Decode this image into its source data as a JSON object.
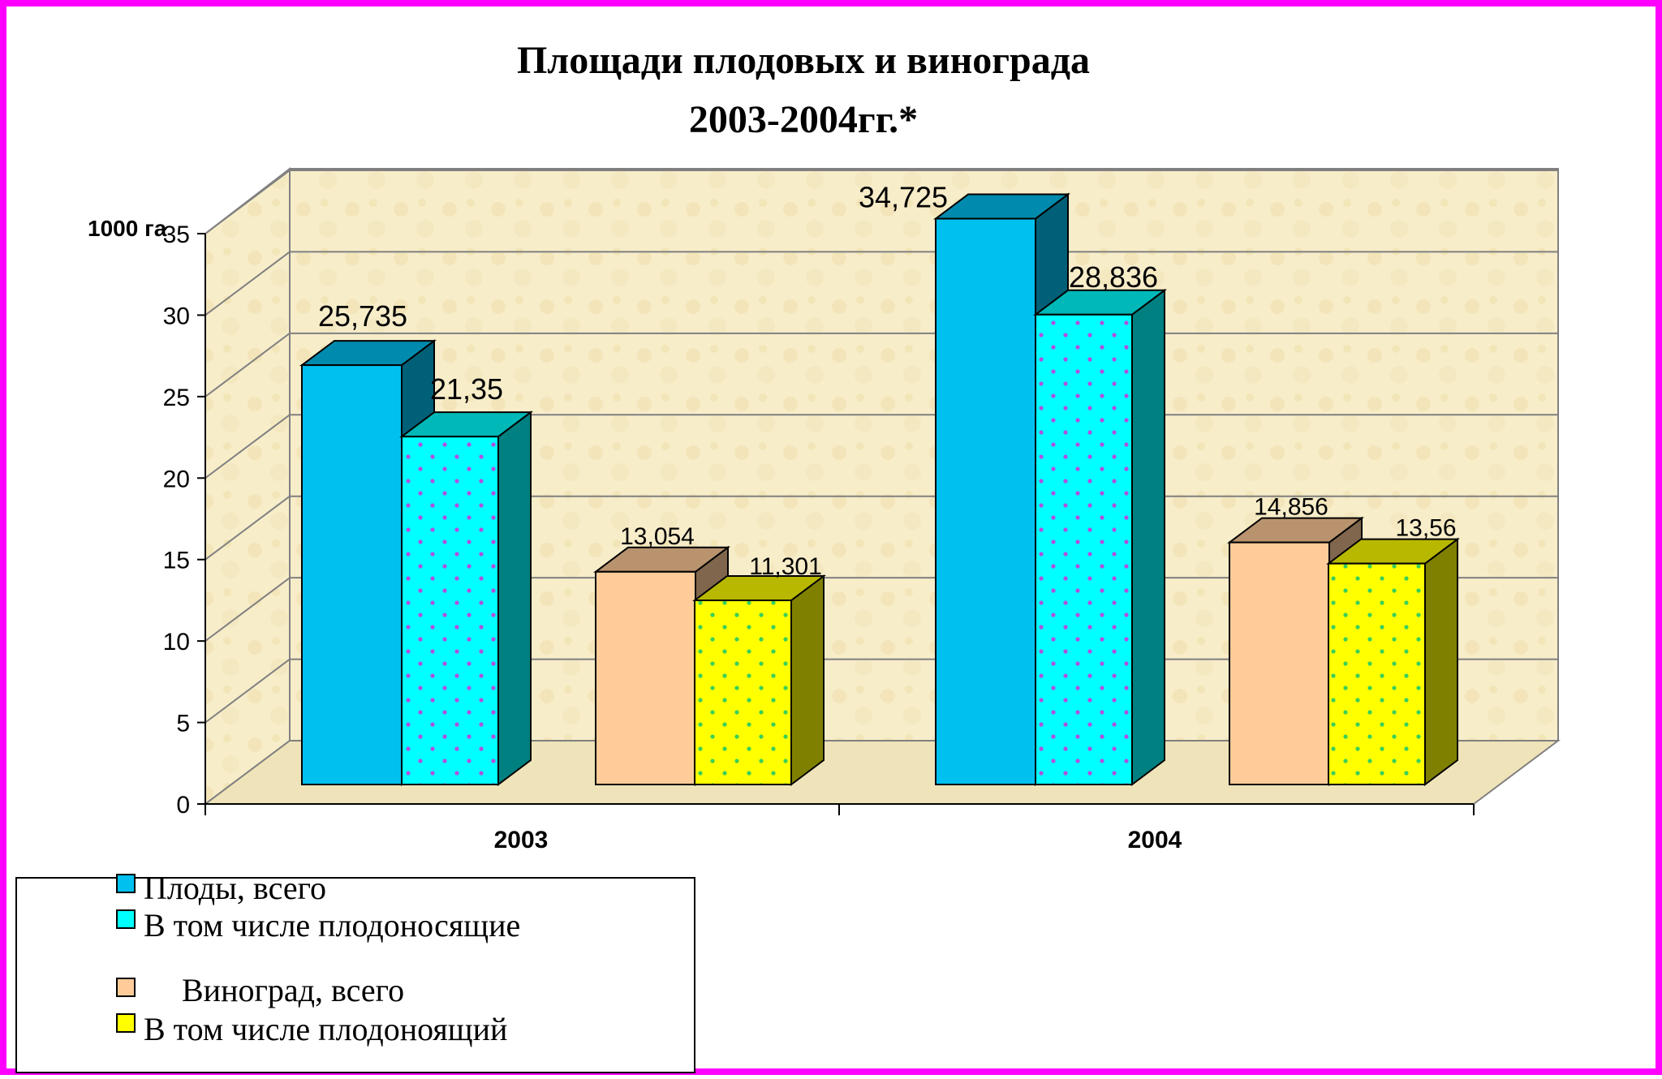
{
  "colors": {
    "frame": "#ff00ff",
    "background": "#ffffff",
    "wall": "#f7edc9",
    "fruit_total": "#00c0f0",
    "fruit_bearing": "#00ffff",
    "grape_total": "#ffcc99",
    "grape_bearing": "#ffff00",
    "grid": "#808080"
  },
  "chart_data": {
    "type": "bar",
    "title_lines": [
      "Площади плодовых и винограда",
      "2003-2004гг.*"
    ],
    "ylabel": "1000 га",
    "yticks": [
      "0",
      "5",
      "10",
      "15",
      "20",
      "25",
      "30",
      "35"
    ],
    "ylim": [
      0,
      35
    ],
    "categories": [
      "2003",
      "2004"
    ],
    "grid": true,
    "three_d": true,
    "legend_position": "bottom-left",
    "series": [
      {
        "name": "Плоды, всего",
        "values": [
          25.735,
          34.725
        ],
        "labels": [
          "25,735",
          "34,725"
        ],
        "color": "#00c0f0",
        "pattern": "none"
      },
      {
        "name": "В том числе плодоносящие",
        "values": [
          21.35,
          28.836
        ],
        "labels": [
          "21,35",
          "28,836"
        ],
        "color": "#00ffff",
        "pattern": "dots"
      },
      {
        "name": "Виноград, всего",
        "values": [
          13.054,
          14.856
        ],
        "labels": [
          "13,054",
          "14,856"
        ],
        "color": "#ffcc99",
        "pattern": "none"
      },
      {
        "name": "В том числе плодоноящий",
        "values": [
          11.301,
          13.56
        ],
        "labels": [
          "11,301",
          "13,56"
        ],
        "color": "#ffff00",
        "pattern": "dots"
      }
    ]
  }
}
